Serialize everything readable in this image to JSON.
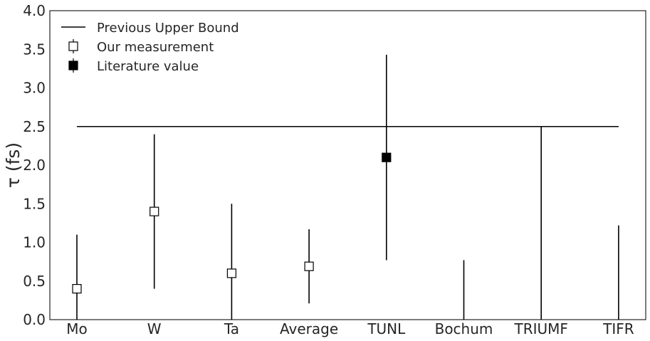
{
  "chart_data": {
    "type": "scatter",
    "title": "",
    "xlabel": "",
    "ylabel": "τ (fs)",
    "categories": [
      "Mo",
      "W",
      "Ta",
      "Average",
      "TUNL",
      "Bochum",
      "TRIUMF",
      "TIFR"
    ],
    "ylim": [
      0,
      4.0
    ],
    "yticks": [
      "0.0",
      "0.5",
      "1.0",
      "1.5",
      "2.0",
      "2.5",
      "3.0",
      "3.5",
      "4.0"
    ],
    "grid": false,
    "legend_position": "top-left",
    "series": [
      {
        "name": "Previous Upper Bound",
        "kind": "line",
        "color": "#000000",
        "y": 2.5,
        "x_span": [
          "Mo",
          "TIFR"
        ]
      },
      {
        "name": "Our measurement",
        "kind": "errorbar",
        "marker": "open-square",
        "color": "#000000",
        "points": [
          {
            "x": "Mo",
            "y": 0.4,
            "err_low": 0.4,
            "err_high": 0.7
          },
          {
            "x": "W",
            "y": 1.4,
            "err_low": 1.0,
            "err_high": 1.0
          },
          {
            "x": "Ta",
            "y": 0.6,
            "err_low": 0.6,
            "err_high": 0.9
          },
          {
            "x": "Average",
            "y": 0.69,
            "err_low": 0.48,
            "err_high": 0.48
          }
        ]
      },
      {
        "name": "Literature value",
        "kind": "errorbar",
        "marker": "filled-square",
        "color": "#000000",
        "points": [
          {
            "x": "TUNL",
            "y": 2.1,
            "err_low": 1.33,
            "err_high": 1.33
          }
        ]
      },
      {
        "name": "",
        "kind": "upper-limit",
        "color": "#000000",
        "points": [
          {
            "x": "Bochum",
            "low": 0,
            "high": 0.77
          },
          {
            "x": "TRIUMF",
            "low": 0,
            "high": 2.5
          },
          {
            "x": "TIFR",
            "low": 0,
            "high": 1.22
          }
        ]
      }
    ],
    "legend": [
      {
        "label": "Previous Upper Bound",
        "style": "line"
      },
      {
        "label": "Our measurement",
        "style": "open-square"
      },
      {
        "label": "Literature value",
        "style": "filled-square"
      }
    ]
  }
}
